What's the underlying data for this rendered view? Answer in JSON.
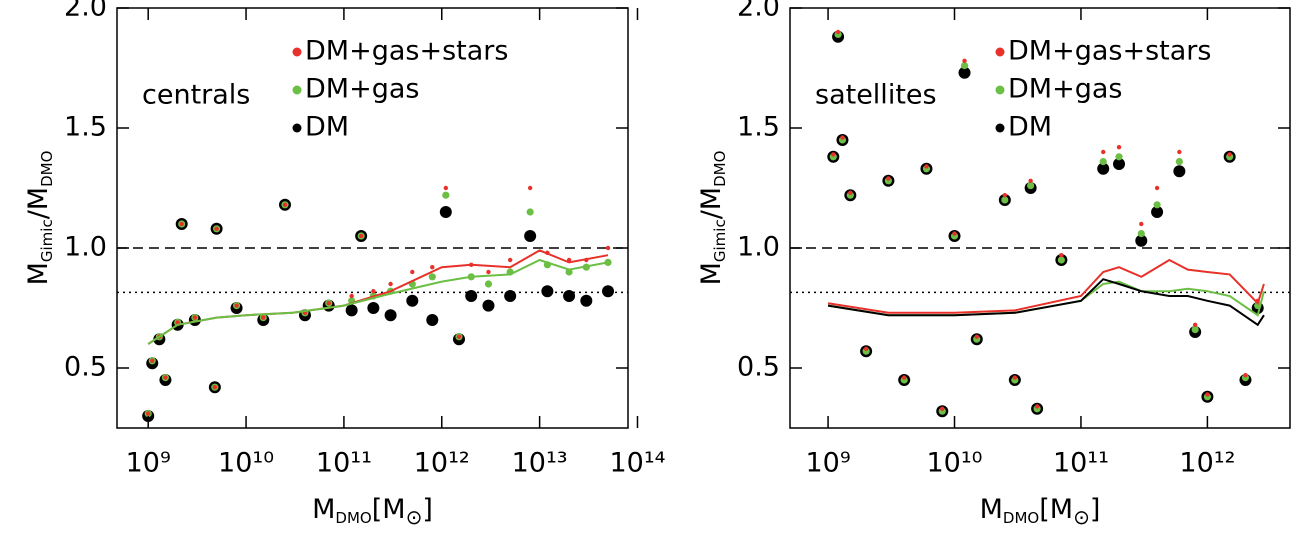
{
  "chart_data": [
    {
      "type": "scatter",
      "annotation": "centrals",
      "xscale": "log",
      "xlabel": [
        "M",
        "DMO",
        "[M",
        "⊙",
        "]"
      ],
      "ylabel": [
        "M",
        "Gimic",
        "/M",
        "DMO"
      ],
      "xlim": [
        480000000.0,
        80000000000000.0
      ],
      "ylim": [
        0.25,
        2.0
      ],
      "xticks": [
        {
          "value": 1000000000.0,
          "label": "10⁹"
        },
        {
          "value": 10000000000.0,
          "label": "10¹⁰"
        },
        {
          "value": 100000000000.0,
          "label": "10¹¹"
        },
        {
          "value": 1000000000000.0,
          "label": "10¹²"
        },
        {
          "value": 10000000000000.0,
          "label": "10¹³"
        },
        {
          "value": 100000000000000.0,
          "label": "10¹⁴"
        }
      ],
      "yticks": [
        {
          "value": 0.5,
          "label": "0.5"
        },
        {
          "value": 1,
          "label": "1.0"
        },
        {
          "value": 1.5,
          "label": "1.5"
        },
        {
          "value": 2,
          "label": "2.0"
        }
      ],
      "hlines": [
        {
          "y": 1.0,
          "style": "dashed"
        },
        {
          "y": 0.815,
          "style": "dotted"
        }
      ],
      "x": [
        1000000000.0,
        1100000000.0,
        1300000000.0,
        2200000000.0,
        1500000000.0,
        2000000000.0,
        3000000000.0,
        4800000000.0,
        5000000000.0,
        8000000000.0,
        15000000000.0,
        25000000000.0,
        40000000000.0,
        70000000000.0,
        120000000000.0,
        150000000000.0,
        200000000000.0,
        300000000000.0,
        500000000000.0,
        800000000000.0,
        1100000000000.0,
        1500000000000.0,
        2000000000000.0,
        3000000000000.0,
        5000000000000.0,
        8000000000000.0,
        12000000000000.0,
        20000000000000.0,
        30000000000000.0,
        50000000000000.0
      ],
      "series": [
        {
          "name": "DM+gas+stars",
          "color": "#e8312a",
          "values": [
            0.31,
            0.53,
            0.63,
            1.1,
            0.46,
            0.69,
            0.71,
            0.42,
            1.08,
            0.76,
            0.71,
            1.18,
            0.73,
            0.77,
            0.8,
            1.05,
            0.82,
            0.85,
            0.9,
            0.92,
            1.25,
            0.63,
            0.93,
            0.9,
            0.95,
            1.25,
            0.98,
            0.95,
            0.95,
            1.0
          ]
        },
        {
          "name": "DM+gas",
          "color": "#6cbf45",
          "values": [
            0.31,
            0.53,
            0.63,
            1.1,
            0.46,
            0.69,
            0.71,
            0.42,
            1.08,
            0.76,
            0.71,
            1.18,
            0.73,
            0.77,
            0.78,
            1.05,
            0.8,
            0.82,
            0.85,
            0.88,
            1.22,
            0.63,
            0.88,
            0.85,
            0.9,
            1.15,
            0.93,
            0.9,
            0.92,
            0.94
          ]
        },
        {
          "name": "DM",
          "color": "#000000",
          "values": [
            0.3,
            0.52,
            0.62,
            1.1,
            0.45,
            0.68,
            0.7,
            0.42,
            1.08,
            0.75,
            0.7,
            1.18,
            0.72,
            0.76,
            0.74,
            1.05,
            0.75,
            0.72,
            0.78,
            0.7,
            1.15,
            0.62,
            0.8,
            0.76,
            0.8,
            1.05,
            0.82,
            0.8,
            0.78,
            0.82
          ]
        }
      ],
      "lines": [
        {
          "color": "#e8312a",
          "x": [
            1000000000.0,
            2000000000.0,
            5000000000.0,
            10000000000.0,
            30000000000.0,
            100000000000.0,
            300000000000.0,
            1000000000000.0,
            2000000000000.0,
            5000000000000.0,
            10000000000000.0,
            20000000000000.0,
            50000000000000.0
          ],
          "values": [
            0.6,
            0.68,
            0.71,
            0.72,
            0.73,
            0.76,
            0.82,
            0.92,
            0.93,
            0.92,
            0.99,
            0.94,
            0.97
          ]
        },
        {
          "color": "#6cbf45",
          "x": [
            1000000000.0,
            2000000000.0,
            5000000000.0,
            10000000000.0,
            30000000000.0,
            100000000000.0,
            300000000000.0,
            1000000000000.0,
            2000000000000.0,
            5000000000000.0,
            10000000000000.0,
            20000000000000.0,
            50000000000000.0
          ],
          "values": [
            0.6,
            0.68,
            0.71,
            0.72,
            0.73,
            0.76,
            0.81,
            0.86,
            0.88,
            0.89,
            0.95,
            0.91,
            0.94
          ]
        }
      ]
    },
    {
      "type": "scatter",
      "annotation": "satellites",
      "xscale": "log",
      "xlabel": [
        "M",
        "DMO",
        "[M",
        "⊙",
        "]"
      ],
      "ylabel": [
        "M",
        "Gimic",
        "/M",
        "DMO"
      ],
      "xlim": [
        500000000.0,
        4500000000000.0
      ],
      "ylim": [
        0.25,
        2.0
      ],
      "xticks": [
        {
          "value": 1000000000.0,
          "label": "10⁹"
        },
        {
          "value": 10000000000.0,
          "label": "10¹⁰"
        },
        {
          "value": 100000000000.0,
          "label": "10¹¹"
        },
        {
          "value": 1000000000000.0,
          "label": "10¹²"
        }
      ],
      "yticks": [
        {
          "value": 0.5,
          "label": "0.5"
        },
        {
          "value": 1,
          "label": "1.0"
        },
        {
          "value": 1.5,
          "label": "1.5"
        },
        {
          "value": 2,
          "label": "2.0"
        }
      ],
      "hlines": [
        {
          "y": 1.0,
          "style": "dashed"
        },
        {
          "y": 0.815,
          "style": "dotted"
        }
      ],
      "x": [
        1200000000.0,
        1300000000.0,
        1100000000.0,
        1500000000.0,
        2000000000.0,
        3000000000.0,
        4000000000.0,
        6000000000.0,
        8000000000.0,
        10000000000.0,
        12000000000.0,
        15000000000.0,
        25000000000.0,
        30000000000.0,
        40000000000.0,
        45000000000.0,
        70000000000.0,
        150000000000.0,
        200000000000.0,
        300000000000.0,
        400000000000.0,
        600000000000.0,
        800000000000.0,
        1000000000000.0,
        1500000000000.0,
        2000000000000.0,
        2500000000000.0
      ],
      "series": [
        {
          "name": "DM+gas+stars",
          "color": "#e8312a",
          "values": [
            1.9,
            1.46,
            1.39,
            1.23,
            0.58,
            1.29,
            0.46,
            1.34,
            0.33,
            1.06,
            1.78,
            0.63,
            1.22,
            0.46,
            1.28,
            0.34,
            0.97,
            1.4,
            1.42,
            1.1,
            1.25,
            1.4,
            0.68,
            0.39,
            1.39,
            0.47,
            0.78
          ]
        },
        {
          "name": "DM+gas",
          "color": "#6cbf45",
          "values": [
            1.89,
            1.45,
            1.38,
            1.22,
            0.57,
            1.28,
            0.45,
            1.33,
            0.32,
            1.05,
            1.76,
            0.62,
            1.2,
            0.45,
            1.26,
            0.33,
            0.95,
            1.36,
            1.38,
            1.06,
            1.18,
            1.36,
            0.66,
            0.38,
            1.38,
            0.46,
            0.76
          ]
        },
        {
          "name": "DM",
          "color": "#000000",
          "values": [
            1.88,
            1.45,
            1.38,
            1.22,
            0.57,
            1.28,
            0.45,
            1.33,
            0.32,
            1.05,
            1.73,
            0.62,
            1.2,
            0.45,
            1.25,
            0.33,
            0.95,
            1.33,
            1.35,
            1.03,
            1.15,
            1.32,
            0.65,
            0.38,
            1.38,
            0.45,
            0.75
          ]
        }
      ],
      "lines": [
        {
          "color": "#e8312a",
          "x": [
            1000000000.0,
            3000000000.0,
            10000000000.0,
            30000000000.0,
            100000000000.0,
            150000000000.0,
            200000000000.0,
            300000000000.0,
            500000000000.0,
            700000000000.0,
            1000000000000.0,
            1500000000000.0,
            2500000000000.0,
            2800000000000.0
          ],
          "values": [
            0.77,
            0.73,
            0.73,
            0.74,
            0.8,
            0.9,
            0.92,
            0.88,
            0.95,
            0.91,
            0.9,
            0.89,
            0.77,
            0.85
          ]
        },
        {
          "color": "#6cbf45",
          "x": [
            1000000000.0,
            3000000000.0,
            10000000000.0,
            30000000000.0,
            100000000000.0,
            150000000000.0,
            200000000000.0,
            300000000000.0,
            500000000000.0,
            700000000000.0,
            1000000000000.0,
            1500000000000.0,
            2500000000000.0,
            2800000000000.0
          ],
          "values": [
            0.76,
            0.72,
            0.72,
            0.73,
            0.78,
            0.85,
            0.86,
            0.82,
            0.82,
            0.83,
            0.82,
            0.8,
            0.72,
            0.82
          ]
        },
        {
          "color": "#000000",
          "x": [
            1000000000.0,
            3000000000.0,
            10000000000.0,
            30000000000.0,
            100000000000.0,
            150000000000.0,
            200000000000.0,
            300000000000.0,
            500000000000.0,
            700000000000.0,
            1000000000000.0,
            1500000000000.0,
            2500000000000.0,
            2800000000000.0
          ],
          "values": [
            0.76,
            0.72,
            0.72,
            0.73,
            0.78,
            0.87,
            0.85,
            0.82,
            0.8,
            0.8,
            0.78,
            0.76,
            0.68,
            0.72
          ]
        }
      ]
    }
  ]
}
